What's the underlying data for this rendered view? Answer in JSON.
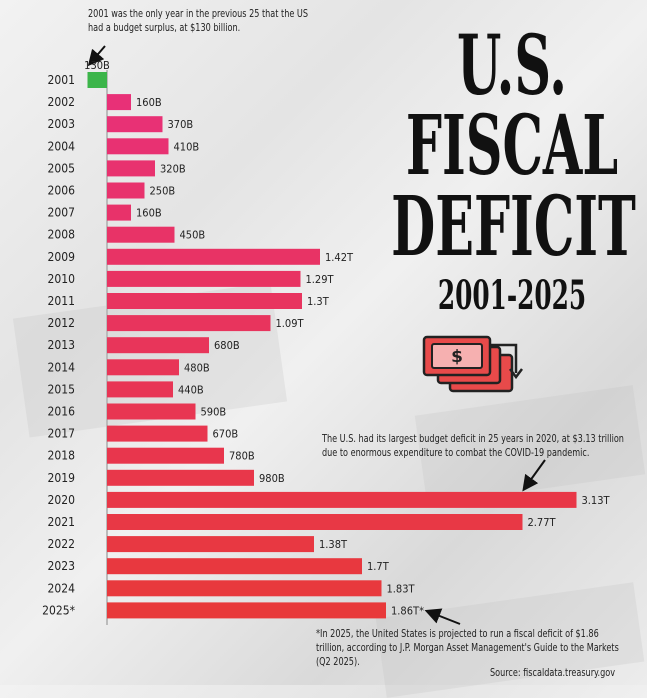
{
  "chart_data": {
    "type": "bar",
    "orientation": "horizontal",
    "title": "U.S. FISCAL DEFICIT",
    "subtitle": "2001-2025",
    "unit": "billions USD",
    "categories": [
      "2001",
      "2002",
      "2003",
      "2004",
      "2005",
      "2006",
      "2007",
      "2008",
      "2009",
      "2010",
      "2011",
      "2012",
      "2013",
      "2014",
      "2015",
      "2016",
      "2017",
      "2018",
      "2019",
      "2020",
      "2021",
      "2022",
      "2023",
      "2024",
      "2025*"
    ],
    "values": [
      -130,
      160,
      370,
      410,
      320,
      250,
      160,
      450,
      1420,
      1290,
      1300,
      1090,
      680,
      480,
      440,
      590,
      670,
      780,
      980,
      3130,
      2770,
      1380,
      1700,
      1830,
      1860
    ],
    "labels": [
      "130B",
      "160B",
      "370B",
      "410B",
      "320B",
      "250B",
      "160B",
      "450B",
      "1.42T",
      "1.29T",
      "1.3T",
      "1.09T",
      "680B",
      "480B",
      "440B",
      "590B",
      "670B",
      "780B",
      "980B",
      "3.13T",
      "2.77T",
      "1.38T",
      "1.7T",
      "1.83T",
      "1.86T*"
    ],
    "colors": {
      "surplus": "#3cb54a",
      "deficit_top": "#e8307a",
      "deficit_bottom": "#e8393a"
    },
    "grid": false,
    "annotations": {
      "surplus": "2001 was the only year in the previous 25 that the US had a budget surplus, at $130 billion.",
      "covid": "The U.S. had its largest budget deficit in 25 years in 2020, at $3.13 trillion due to enormous expenditure to combat the COVID-19 pandemic.",
      "projection": "*In 2025, the United States is projected to run a fiscal deficit of $1.86 trillion, according to J.P. Morgan Asset Management's Guide to the Markets (Q2 2025).",
      "source": "Source: fiscaldata.treasury.gov"
    },
    "icon": "money-bills-down-arrow-icon"
  }
}
